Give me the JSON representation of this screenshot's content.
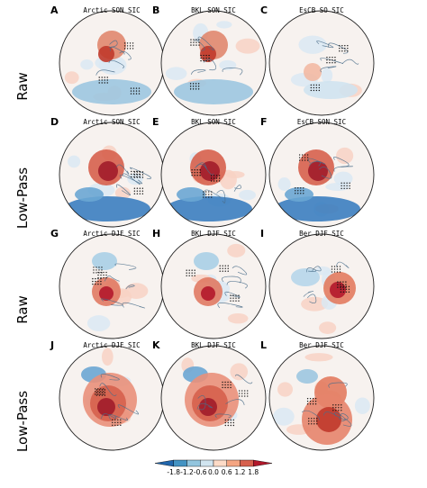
{
  "figure": {
    "row_labels": [
      "Raw",
      "Low-Pass",
      "Raw",
      "Low-Pass"
    ],
    "panels": [
      {
        "letter": "A",
        "title": "Arctic SON SIC",
        "pattern": "blue-band"
      },
      {
        "letter": "B",
        "title": "BKL SON SIC",
        "pattern": "blue-band"
      },
      {
        "letter": "C",
        "title": "EsCB SO SIC",
        "pattern": "weak"
      },
      {
        "letter": "D",
        "title": "Arctic SON SIC",
        "pattern": "strong-blue-band"
      },
      {
        "letter": "E",
        "title": "BKL SON SIC",
        "pattern": "strong-blue-band"
      },
      {
        "letter": "F",
        "title": "EsCB SON SIC",
        "pattern": "strong-blue-band"
      },
      {
        "letter": "G",
        "title": "Arctic DJF SIC",
        "pattern": "red-center"
      },
      {
        "letter": "H",
        "title": "BKL DJF SIC",
        "pattern": "red-center"
      },
      {
        "letter": "I",
        "title": "Ber DJF SIC",
        "pattern": "red-east"
      },
      {
        "letter": "J",
        "title": "Arctic DJF SIC",
        "pattern": "strong-red"
      },
      {
        "letter": "K",
        "title": "BKL DJF SIC",
        "pattern": "strong-red"
      },
      {
        "letter": "L",
        "title": "Ber DJF SIC",
        "pattern": "strong-red-east"
      }
    ]
  },
  "colorbar": {
    "ticks": [
      "-1.8",
      "-1.2",
      "-0.6",
      "0.0",
      "0.6",
      "1.2",
      "1.8"
    ],
    "colors": [
      "#2166ac",
      "#4393c3",
      "#92c5de",
      "#d1e5f0",
      "#fddbc7",
      "#f4a582",
      "#d6604d",
      "#b2182b"
    ]
  }
}
